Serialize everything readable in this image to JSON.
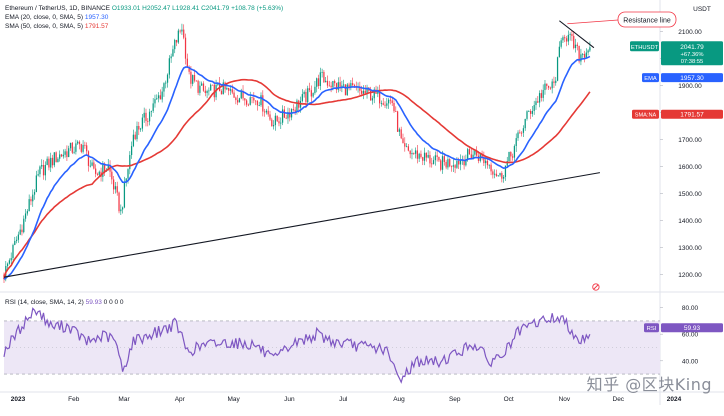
{
  "header": {
    "symbol": "Ethereum / TetherUS, 1D, BINANCE",
    "ohlc": "O1933.01  H2052.47  L1928.41  C2041.79  +108.78 (+5.63%)",
    "ema_label": "EMA (20, close, 0, SMA, 5)",
    "ema_value": "1957.30",
    "sma_label": "SMA (50, close, 0, SMA, 5)",
    "sma_value": "1791.57",
    "rsi_label": "RSI (14, close, SMA, 14, 2)",
    "rsi_value": "59.93",
    "rsi_extra": "0  0  0  0"
  },
  "currency": "USDT",
  "annotation": "Resistance line",
  "watermark": "知乎 @区块King",
  "badges": {
    "ethusdt_label": "ETHUSDT",
    "ethusdt_price": "2041.79",
    "ethusdt_change": "+67.36%",
    "ethusdt_timer": "07:38:55",
    "ema_label": "EMA",
    "ema_value": "1957.30",
    "sma_label": "SMA:NA",
    "sma_value": "1791.57",
    "rsi_label": "RSI",
    "rsi_value": "59.93"
  },
  "colors": {
    "up": "#089981",
    "down": "#f23645",
    "ema": "#2962ff",
    "sma": "#e53935",
    "rsi": "#7e57c2",
    "rsi_band": "#ede7f6",
    "trendline": "#131722",
    "annotation": "#f23645"
  },
  "chart_data": {
    "type": "candlestick",
    "price_axis": {
      "ticks": [
        1200,
        1300,
        1400,
        1500,
        1600,
        1700,
        1800,
        1900,
        2000,
        2100
      ],
      "labels": [
        "1200.00",
        "1300.00",
        "1400.00",
        "1500.00",
        "1600.00",
        "1700.00",
        "1800.00",
        "1900.00",
        "2000.00",
        "2100.00"
      ],
      "range": [
        1150,
        2165
      ]
    },
    "rsi_axis": {
      "ticks": [
        40,
        60,
        80
      ],
      "labels": [
        "40.00",
        "60.00",
        "80.00"
      ],
      "bands": [
        30,
        70
      ],
      "range": [
        18,
        88
      ]
    },
    "x_axis": {
      "labels": [
        "2023",
        "Feb",
        "Mar",
        "Apr",
        "May",
        "Jun",
        "Jul",
        "Aug",
        "Sep",
        "Oct",
        "Nov",
        "Dec",
        "2024"
      ],
      "label_days": [
        0,
        31,
        59,
        90,
        120,
        151,
        181,
        212,
        243,
        273,
        304,
        334,
        365
      ],
      "last_day": 326
    },
    "price_path": [
      [
        0,
        1200
      ],
      [
        12,
        1420
      ],
      [
        20,
        1580
      ],
      [
        28,
        1630
      ],
      [
        36,
        1660
      ],
      [
        44,
        1680
      ],
      [
        50,
        1570
      ],
      [
        58,
        1600
      ],
      [
        65,
        1430
      ],
      [
        72,
        1720
      ],
      [
        80,
        1790
      ],
      [
        88,
        1880
      ],
      [
        95,
        2050
      ],
      [
        99,
        2120
      ],
      [
        103,
        1930
      ],
      [
        112,
        1870
      ],
      [
        120,
        1890
      ],
      [
        130,
        1860
      ],
      [
        142,
        1850
      ],
      [
        150,
        1760
      ],
      [
        158,
        1800
      ],
      [
        170,
        1870
      ],
      [
        176,
        1930
      ],
      [
        184,
        1900
      ],
      [
        196,
        1880
      ],
      [
        208,
        1860
      ],
      [
        216,
        1840
      ],
      [
        222,
        1660
      ],
      [
        232,
        1640
      ],
      [
        242,
        1610
      ],
      [
        252,
        1620
      ],
      [
        262,
        1650
      ],
      [
        270,
        1610
      ],
      [
        276,
        1560
      ],
      [
        282,
        1640
      ],
      [
        292,
        1800
      ],
      [
        300,
        1880
      ],
      [
        306,
        1900
      ],
      [
        311,
        2100
      ],
      [
        316,
        2060
      ],
      [
        320,
        2010
      ],
      [
        326,
        2041.79
      ]
    ],
    "rsi_path": [
      [
        0,
        47
      ],
      [
        12,
        70
      ],
      [
        18,
        79
      ],
      [
        26,
        66
      ],
      [
        36,
        66
      ],
      [
        46,
        54
      ],
      [
        56,
        59
      ],
      [
        62,
        55
      ],
      [
        66,
        32
      ],
      [
        72,
        55
      ],
      [
        84,
        61
      ],
      [
        96,
        68
      ],
      [
        102,
        47
      ],
      [
        112,
        52
      ],
      [
        125,
        54
      ],
      [
        140,
        52
      ],
      [
        150,
        40
      ],
      [
        160,
        52
      ],
      [
        174,
        60
      ],
      [
        184,
        54
      ],
      [
        198,
        51
      ],
      [
        212,
        49
      ],
      [
        220,
        26
      ],
      [
        230,
        40
      ],
      [
        242,
        39
      ],
      [
        252,
        46
      ],
      [
        262,
        53
      ],
      [
        270,
        39
      ],
      [
        278,
        45
      ],
      [
        286,
        61
      ],
      [
        295,
        68
      ],
      [
        304,
        72
      ],
      [
        310,
        72
      ],
      [
        316,
        63
      ],
      [
        320,
        55
      ],
      [
        326,
        59.93
      ]
    ],
    "ema20": {
      "name": "EMA",
      "last": 1957.3
    },
    "sma50": {
      "name": "SMA",
      "last": 1791.57
    },
    "support_line": {
      "from": [
        0,
        1190
      ],
      "to": [
        326,
        1570
      ]
    },
    "resistance_line": {
      "from": [
        309,
        2140
      ],
      "to": [
        326,
        2040
      ]
    }
  }
}
